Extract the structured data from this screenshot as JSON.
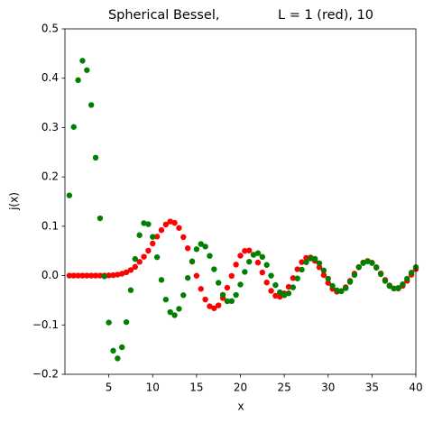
{
  "chart_data": {
    "type": "scatter",
    "title": "Spherical Bessel,              L = 1 (red), 10",
    "x_label": "x",
    "y_label": "j(x)",
    "xlim": [
      0,
      40
    ],
    "xticks": [
      5,
      10,
      15,
      20,
      25,
      30,
      35,
      40
    ],
    "ylim": [
      -0.2,
      0.5
    ],
    "yticks": [
      {
        "value": -0.2,
        "label": "−0.2"
      },
      {
        "value": -0.1,
        "label": "−0.1"
      },
      {
        "value": 0,
        "label": "0.0"
      },
      0.1,
      0.2,
      0.3,
      0.4,
      0.5
    ],
    "x": [
      0.5,
      1,
      1.5,
      2,
      2.5,
      3,
      3.5,
      4,
      4.5,
      5,
      5.5,
      6,
      6.5,
      7,
      7.5,
      8,
      8.5,
      9,
      9.5,
      10,
      10.5,
      11,
      11.5,
      12,
      12.5,
      13,
      13.5,
      14,
      14.5,
      15,
      15.5,
      16,
      16.5,
      17,
      17.5,
      18,
      18.5,
      19,
      19.5,
      20,
      20.5,
      21,
      21.5,
      22,
      22.5,
      23,
      23.5,
      24,
      24.5,
      25,
      25.5,
      26,
      26.5,
      27,
      27.5,
      28,
      28.5,
      29,
      29.5,
      30,
      30.5,
      31,
      31.5,
      32,
      32.5,
      33,
      33.5,
      34,
      34.5,
      35,
      35.5,
      36,
      36.5,
      37,
      37.5,
      38,
      38.5,
      39,
      39.5,
      40
    ],
    "series": [
      {
        "color": "#ff0000",
        "values": [
          0,
          0,
          0,
          0,
          0,
          0,
          0,
          0.0001,
          0.0002,
          0.0004,
          0.0009,
          0.0019,
          0.0038,
          0.0067,
          0.0113,
          0.0177,
          0.0279,
          0.0382,
          0.0505,
          0.065,
          0.079,
          0.0922,
          0.1035,
          0.1097,
          0.1068,
          0.0966,
          0.078,
          0.0555,
          0.0282,
          -0.0003,
          -0.0269,
          -0.0484,
          -0.0622,
          -0.0662,
          -0.0603,
          -0.0455,
          -0.0246,
          -0.0006,
          0.0223,
          0.0404,
          0.0501,
          0.0509,
          0.0422,
          0.0264,
          0.0063,
          -0.014,
          -0.0309,
          -0.041,
          -0.0428,
          -0.0362,
          -0.0228,
          -0.005,
          0.0129,
          0.0274,
          0.0359,
          0.0367,
          0.0298,
          0.0169,
          0.001,
          -0.0147,
          -0.0267,
          -0.0327,
          -0.0315,
          -0.0235,
          -0.0107,
          0.004,
          0.0174,
          0.0266,
          0.0297,
          0.0262,
          0.0171,
          0.0044,
          -0.0088,
          -0.0198,
          -0.0261,
          -0.0262,
          -0.0207,
          -0.0106,
          0.0017,
          0.0132
        ]
      },
      {
        "color": "#008000",
        "values": [
          0.1625,
          0.3012,
          0.3961,
          0.4354,
          0.4163,
          0.3457,
          0.239,
          0.1161,
          -0.0015,
          -0.0951,
          -0.1522,
          -0.1678,
          -0.1451,
          -0.0943,
          -0.0295,
          0.0337,
          0.0819,
          0.1063,
          0.1042,
          0.0785,
          0.0373,
          -0.0087,
          -0.0486,
          -0.074,
          -0.0802,
          -0.0673,
          -0.0397,
          -0.0047,
          0.0289,
          0.0535,
          0.064,
          0.0588,
          0.04,
          0.0129,
          -0.0146,
          -0.039,
          -0.0519,
          -0.0516,
          -0.0392,
          -0.0181,
          0.0075,
          0.028,
          0.0421,
          0.0454,
          0.0379,
          0.0216,
          -0.0001,
          -0.0193,
          -0.0338,
          -0.0398,
          -0.0359,
          -0.0238,
          -0.0057,
          0.0121,
          0.0271,
          0.0347,
          0.034,
          0.025,
          0.0104,
          -0.0062,
          -0.0209,
          -0.0299,
          -0.0315,
          -0.0256,
          -0.0128,
          0.0013,
          0.0168,
          0.0255,
          0.0289,
          0.0255,
          0.0161,
          0.0028,
          -0.0109,
          -0.0212,
          -0.0262,
          -0.0249,
          -0.0176,
          -0.0062,
          0.0061,
          0.0172
        ]
      }
    ]
  }
}
